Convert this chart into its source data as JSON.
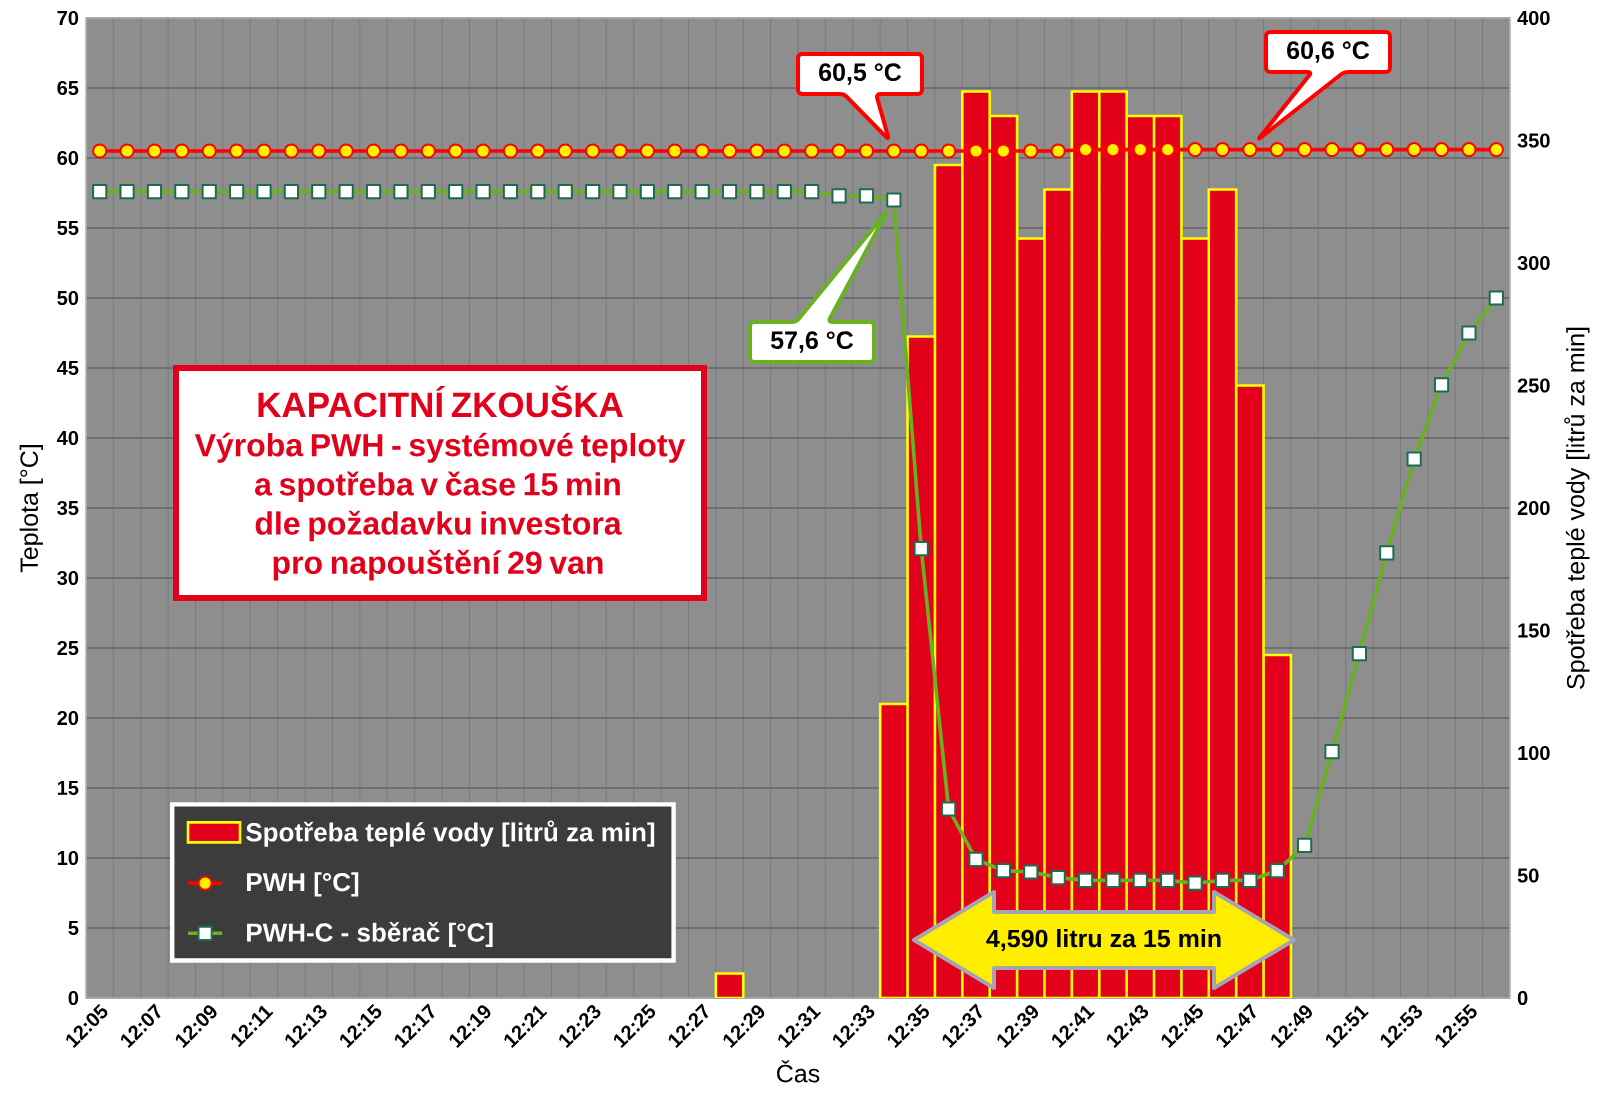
{
  "chart_data": {
    "type": "bar",
    "title": "KAPACITNÍ ZKOUŠKA",
    "subtitle": "Výroba PWH  - systémové teploty a spotřeba v čase 15 min dle požadavku investora pro napouštění 29 van",
    "xlabel": "Čas",
    "ylabel": "Teplota [°C]",
    "y2label": "Spotřeba teplé vody [litrů za min]",
    "annotations": [
      "60,5 °C",
      "60,6 °C",
      "57,6 °C",
      "4,590 litru za 15 min"
    ],
    "categories": [
      "12:05",
      null,
      "12:07",
      null,
      "12:09",
      null,
      "12:11",
      null,
      "12:13",
      null,
      "12:15",
      null,
      "12:17",
      null,
      "12:19",
      null,
      "12:21",
      null,
      "12:23",
      null,
      "12:25",
      null,
      "12:27",
      null,
      "12:29",
      null,
      "12:31",
      null,
      "12:33",
      null,
      "12:35",
      null,
      "12:37",
      null,
      "12:39",
      null,
      "12:41",
      null,
      "12:43",
      null,
      "12:45",
      null,
      "12:47",
      null,
      "12:49",
      null,
      "12:51",
      null,
      "12:53",
      null,
      "12:55",
      null
    ],
    "series": [
      {
        "name": "Spotřeba teplé vody [litrů za min]",
        "axis": "y2",
        "color": "#e2001a",
        "values": [
          null,
          null,
          null,
          null,
          null,
          null,
          null,
          null,
          null,
          null,
          null,
          null,
          null,
          null,
          null,
          null,
          null,
          null,
          null,
          null,
          null,
          null,
          null,
          10,
          null,
          null,
          null,
          null,
          null,
          120,
          270,
          340,
          370,
          360,
          310,
          330,
          370,
          370,
          360,
          360,
          310,
          330,
          250,
          140,
          null,
          null,
          null,
          null,
          null,
          null,
          null,
          null
        ]
      },
      {
        "name": "PWH  [°C]",
        "type": "line",
        "color": "#ff0000",
        "marker": "circle",
        "values": [
          60.5,
          60.5,
          60.5,
          60.5,
          60.5,
          60.5,
          60.5,
          60.5,
          60.5,
          60.5,
          60.5,
          60.5,
          60.5,
          60.5,
          60.5,
          60.5,
          60.5,
          60.5,
          60.5,
          60.5,
          60.5,
          60.5,
          60.5,
          60.5,
          60.5,
          60.5,
          60.5,
          60.5,
          60.5,
          60.5,
          60.5,
          60.5,
          60.5,
          60.5,
          60.5,
          60.5,
          60.6,
          60.6,
          60.6,
          60.6,
          60.6,
          60.6,
          60.6,
          60.6,
          60.6,
          60.6,
          60.6,
          60.6,
          60.6,
          60.6,
          60.6,
          60.6
        ]
      },
      {
        "name": "PWH-C  - sběrač [°C]",
        "type": "line",
        "color": "#6ab023",
        "marker": "square",
        "values": [
          57.6,
          57.6,
          57.6,
          57.6,
          57.6,
          57.6,
          57.6,
          57.6,
          57.6,
          57.6,
          57.6,
          57.6,
          57.6,
          57.6,
          57.6,
          57.6,
          57.6,
          57.6,
          57.6,
          57.6,
          57.6,
          57.6,
          57.6,
          57.6,
          57.6,
          57.6,
          57.6,
          57.3,
          57.3,
          57.0,
          32.1,
          13.5,
          9.9,
          9.1,
          9.0,
          8.6,
          8.4,
          8.4,
          8.4,
          8.4,
          8.2,
          8.4,
          8.4,
          9.1,
          10.9,
          17.6,
          24.6,
          31.8,
          38.5,
          43.8,
          47.5,
          50.0
        ]
      }
    ],
    "ylim": [
      0,
      70
    ],
    "yticks": [
      0,
      5,
      10,
      15,
      20,
      25,
      30,
      35,
      40,
      45,
      50,
      55,
      60,
      65,
      70
    ],
    "y2lim": [
      0,
      400
    ],
    "y2ticks": [
      0,
      50,
      100,
      150,
      200,
      250,
      300,
      350,
      400
    ],
    "grid": true,
    "legend": "bottom left"
  }
}
